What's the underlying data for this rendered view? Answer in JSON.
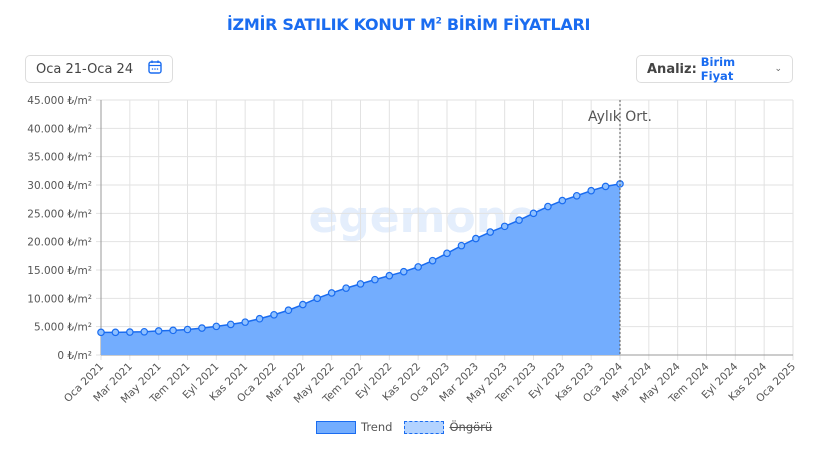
{
  "title_main": "İZMİR SATILIK KONUT M",
  "title_sup": "2",
  "title_rest": " BİRİM FİYATLARI",
  "date_range": "Oca 21-Oca 24",
  "analysis": {
    "label": "Analiz:",
    "value": "Birim Fiyat"
  },
  "watermark": "egemoney",
  "colors": {
    "accent": "#1a6cf0",
    "fill": "#73adfe",
    "forecast_fill": "#b3d3ff"
  },
  "chart_data": {
    "type": "area",
    "ylim": [
      0,
      45000
    ],
    "yticks": [
      "0 ₺/m²",
      "5.000 ₺/m²",
      "10.000 ₺/m²",
      "15.000 ₺/m²",
      "20.000 ₺/m²",
      "25.000 ₺/m²",
      "30.000 ₺/m²",
      "35.000 ₺/m²",
      "40.000 ₺/m²",
      "45.000 ₺/m²"
    ],
    "xrange": [
      "Oca 2021",
      "Oca 2025"
    ],
    "xticks": [
      "Oca 2021",
      "Mar 2021",
      "May 2021",
      "Tem 2021",
      "Eyl 2021",
      "Kas 2021",
      "Oca 2022",
      "Mar 2022",
      "May 2022",
      "Tem 2022",
      "Eyl 2022",
      "Kas 2022",
      "Oca 2023",
      "Mar 2023",
      "May 2023",
      "Tem 2023",
      "Eyl 2023",
      "Kas 2023",
      "Oca 2024",
      "Mar 2024",
      "May 2024",
      "Tem 2024",
      "Eyl 2024",
      "Kas 2024",
      "Oca 2025"
    ],
    "grid": true,
    "legend_position": "bottom",
    "annotation": {
      "label": "Aylık Ort.",
      "x": "Oca 2024"
    },
    "series": [
      {
        "name": "Trend",
        "visible": true,
        "values": [
          4000,
          4000,
          4050,
          4100,
          4250,
          4350,
          4500,
          4750,
          5050,
          5400,
          5800,
          6400,
          7100,
          7900,
          8900,
          10000,
          10950,
          11800,
          12550,
          13300,
          14000,
          14700,
          15550,
          16650,
          17950,
          19300,
          20550,
          21700,
          22700,
          23800,
          25000,
          26200,
          27250,
          28100,
          29000,
          29750,
          30200
        ]
      },
      {
        "name": "Öngörü",
        "visible": false,
        "values": []
      }
    ]
  }
}
